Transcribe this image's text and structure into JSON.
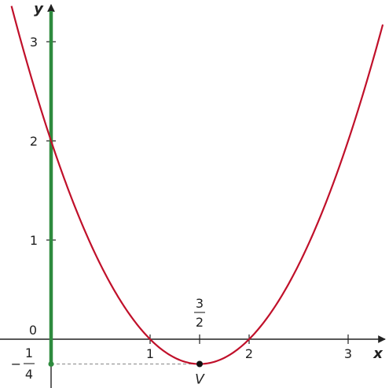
{
  "chart_data": {
    "type": "line",
    "xlabel": "x",
    "ylabel": "y",
    "xlim": [
      -0.5,
      3.45
    ],
    "ylim": [
      -0.5,
      3.35
    ],
    "grid": false,
    "x_ticks": [
      {
        "value": 1,
        "label": "1"
      },
      {
        "value": 2,
        "label": "2"
      },
      {
        "value": 3,
        "label": "3"
      }
    ],
    "y_ticks": [
      {
        "value": 1,
        "label": "1"
      },
      {
        "value": 2,
        "label": "2"
      },
      {
        "value": 3,
        "label": "3"
      }
    ],
    "origin_label": "0",
    "series": [
      {
        "function": "y = x^2 - 3x + 2",
        "color": "#c0102a",
        "x": [
          -0.4,
          -0.25,
          0,
          0.25,
          0.5,
          0.75,
          1,
          1.25,
          1.5,
          1.75,
          2,
          2.25,
          2.5,
          2.75,
          3,
          3.25,
          3.35
        ],
        "y": [
          3.36,
          2.81,
          2,
          1.31,
          0.75,
          0.31,
          0,
          -0.19,
          -0.25,
          -0.19,
          0,
          0.31,
          0.75,
          1.31,
          2,
          2.81,
          3.17
        ]
      }
    ],
    "highlight_line": {
      "axis": "y",
      "color": "#2e8b3e"
    },
    "vertex": {
      "x": 1.5,
      "y": -0.25,
      "label": "V",
      "x_label": {
        "numerator": "3",
        "denominator": "2"
      },
      "y_label": {
        "sign": "−",
        "numerator": "1",
        "denominator": "4"
      }
    }
  }
}
